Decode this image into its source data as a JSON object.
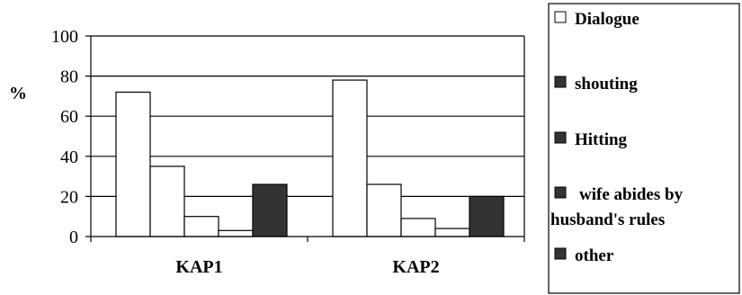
{
  "chart_data": {
    "type": "bar",
    "title": "",
    "xlabel": "",
    "ylabel": "%",
    "ylim": [
      0,
      100
    ],
    "yticks": [
      0,
      20,
      40,
      60,
      80,
      100
    ],
    "grid": true,
    "legend_position": "right",
    "categories": [
      "KAP1",
      "KAP2"
    ],
    "series": [
      {
        "name": "Dialogue",
        "values": [
          72,
          78
        ],
        "color": "#ffffff"
      },
      {
        "name": "shouting",
        "values": [
          35,
          26
        ],
        "color": "#ffffff"
      },
      {
        "name": "Hitting",
        "values": [
          10,
          9
        ],
        "color": "#ffffff"
      },
      {
        "name": "wife abides by husband's rules",
        "values": [
          3,
          4
        ],
        "color": "#ffffff"
      },
      {
        "name": "other",
        "values": [
          26,
          20
        ],
        "color": "#333333"
      }
    ],
    "legend": [
      {
        "label": "Dialogue",
        "marker": "hollow-square"
      },
      {
        "label": "shouting",
        "marker": "filled-square"
      },
      {
        "label": "Hitting",
        "marker": "filled-square"
      },
      {
        "label_lines": [
          "wife abides by",
          "husband's rules"
        ],
        "marker": "filled-square"
      },
      {
        "label": "other",
        "marker": "filled-square"
      }
    ]
  }
}
